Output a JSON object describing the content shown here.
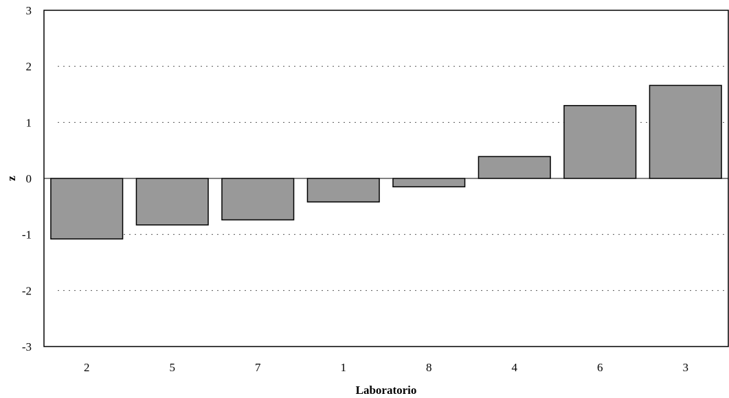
{
  "chart_data": {
    "type": "bar",
    "categories": [
      "2",
      "5",
      "7",
      "1",
      "8",
      "4",
      "6",
      "3"
    ],
    "values": [
      -1.08,
      -0.83,
      -0.74,
      -0.42,
      -0.15,
      0.39,
      1.3,
      1.66
    ],
    "xlabel": "Laboratorio",
    "ylabel": "z",
    "ylim": [
      -3,
      3
    ],
    "yticks": [
      "3",
      "2",
      "1",
      "0",
      "-1",
      "-2",
      "-3"
    ],
    "grid": "horizontal dotted at ±1, ±2",
    "bar_color": "#999999"
  }
}
